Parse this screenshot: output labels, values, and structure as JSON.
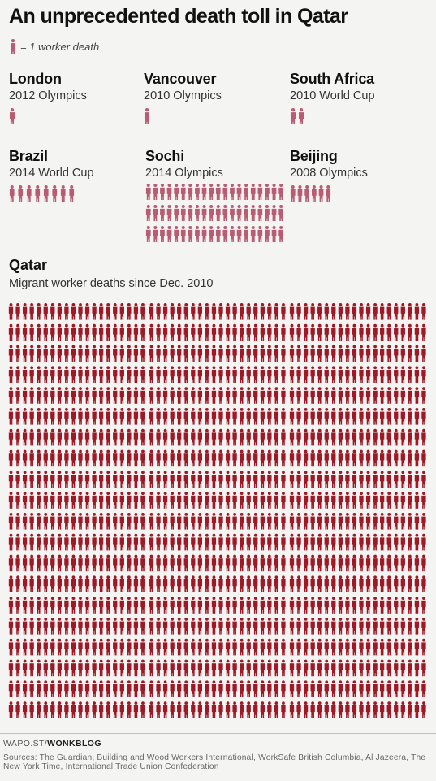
{
  "title": "An unprecedented death toll in Qatar",
  "legend_text": "= 1 worker death",
  "colors": {
    "icon_small": "#b85c74",
    "icon_qatar": "#9e1826",
    "background": "#f4f4f2"
  },
  "chart_data": {
    "type": "pictogram",
    "unit": "1 worker death",
    "events": [
      {
        "name": "London",
        "event": "2012 Olympics",
        "deaths": 1
      },
      {
        "name": "Vancouver",
        "event": "2010 Olympics",
        "deaths": 1
      },
      {
        "name": "South Africa",
        "event": "2010 World Cup",
        "deaths": 2
      },
      {
        "name": "Brazil",
        "event": "2014 World Cup",
        "deaths": 8
      },
      {
        "name": "Sochi",
        "event": "2014 Olympics",
        "deaths": 60
      },
      {
        "name": "Beijing",
        "event": "2008 Olympics",
        "deaths": 6
      }
    ],
    "qatar": {
      "name": "Qatar",
      "subtitle": "Migrant worker deaths since Dec. 2010",
      "deaths": 1200
    }
  },
  "footer": {
    "credit_prefix": "WAPO.ST/",
    "credit_strong": "WONKBLOG",
    "sources": "Sources: The Guardian, Building and Wood Workers International, WorkSafe British Columbia, Al Jazeera, The New York Time, International Trade Union Confederation"
  }
}
